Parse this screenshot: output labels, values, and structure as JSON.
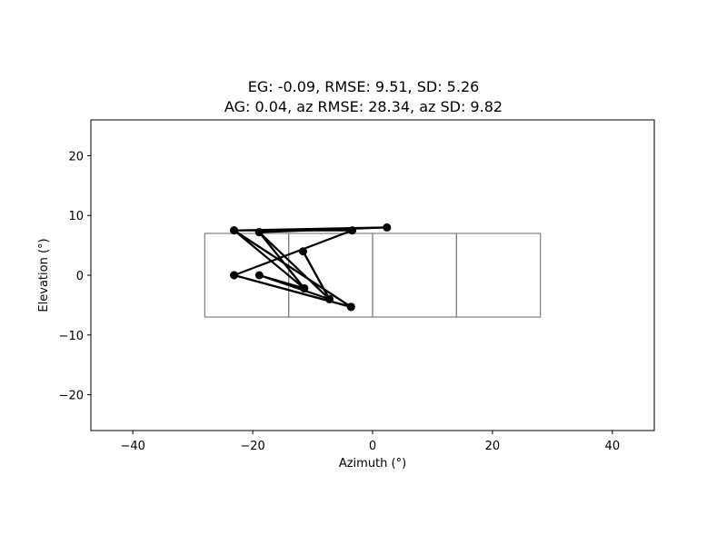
{
  "chart_data": {
    "type": "line",
    "title_lines": [
      "EG: -0.09, RMSE: 9.51, SD: 5.26",
      "AG: 0.04, az RMSE: 28.34, az SD: 9.82"
    ],
    "xlabel": "Azimuth (°)",
    "ylabel": "Elevation (°)",
    "xlim": [
      -47,
      47
    ],
    "ylim": [
      -26,
      26
    ],
    "xticks": [
      -40,
      -20,
      0,
      20,
      40
    ],
    "yticks": [
      -20,
      -10,
      0,
      10,
      20
    ],
    "grid": false,
    "reference_boxes": {
      "x_edges": [
        -28,
        -14,
        0,
        14,
        28
      ],
      "y_range": [
        -7,
        7
      ],
      "color": "#808080"
    },
    "series": [
      {
        "color": "#000000",
        "marker": "circle",
        "points": [
          [
            -23.1,
            7.5
          ],
          [
            -3.4,
            7.5
          ],
          [
            -23.1,
            0.0
          ],
          [
            -3.6,
            -5.3
          ],
          [
            -23.1,
            7.5
          ],
          [
            -11.4,
            -2.2
          ],
          [
            -18.9,
            7.2
          ],
          [
            -7.2,
            -4.0
          ],
          [
            -11.6,
            4.0
          ],
          [
            -7.2,
            -4.0
          ],
          [
            -18.9,
            0.0
          ],
          [
            -11.4,
            -2.2
          ],
          [
            -18.9,
            7.2
          ],
          [
            2.4,
            8.0
          ],
          [
            -23.1,
            7.5
          ],
          [
            -3.6,
            -5.3
          ],
          [
            -23.1,
            0.0
          ],
          [
            -3.6,
            -5.3
          ]
        ]
      }
    ]
  }
}
